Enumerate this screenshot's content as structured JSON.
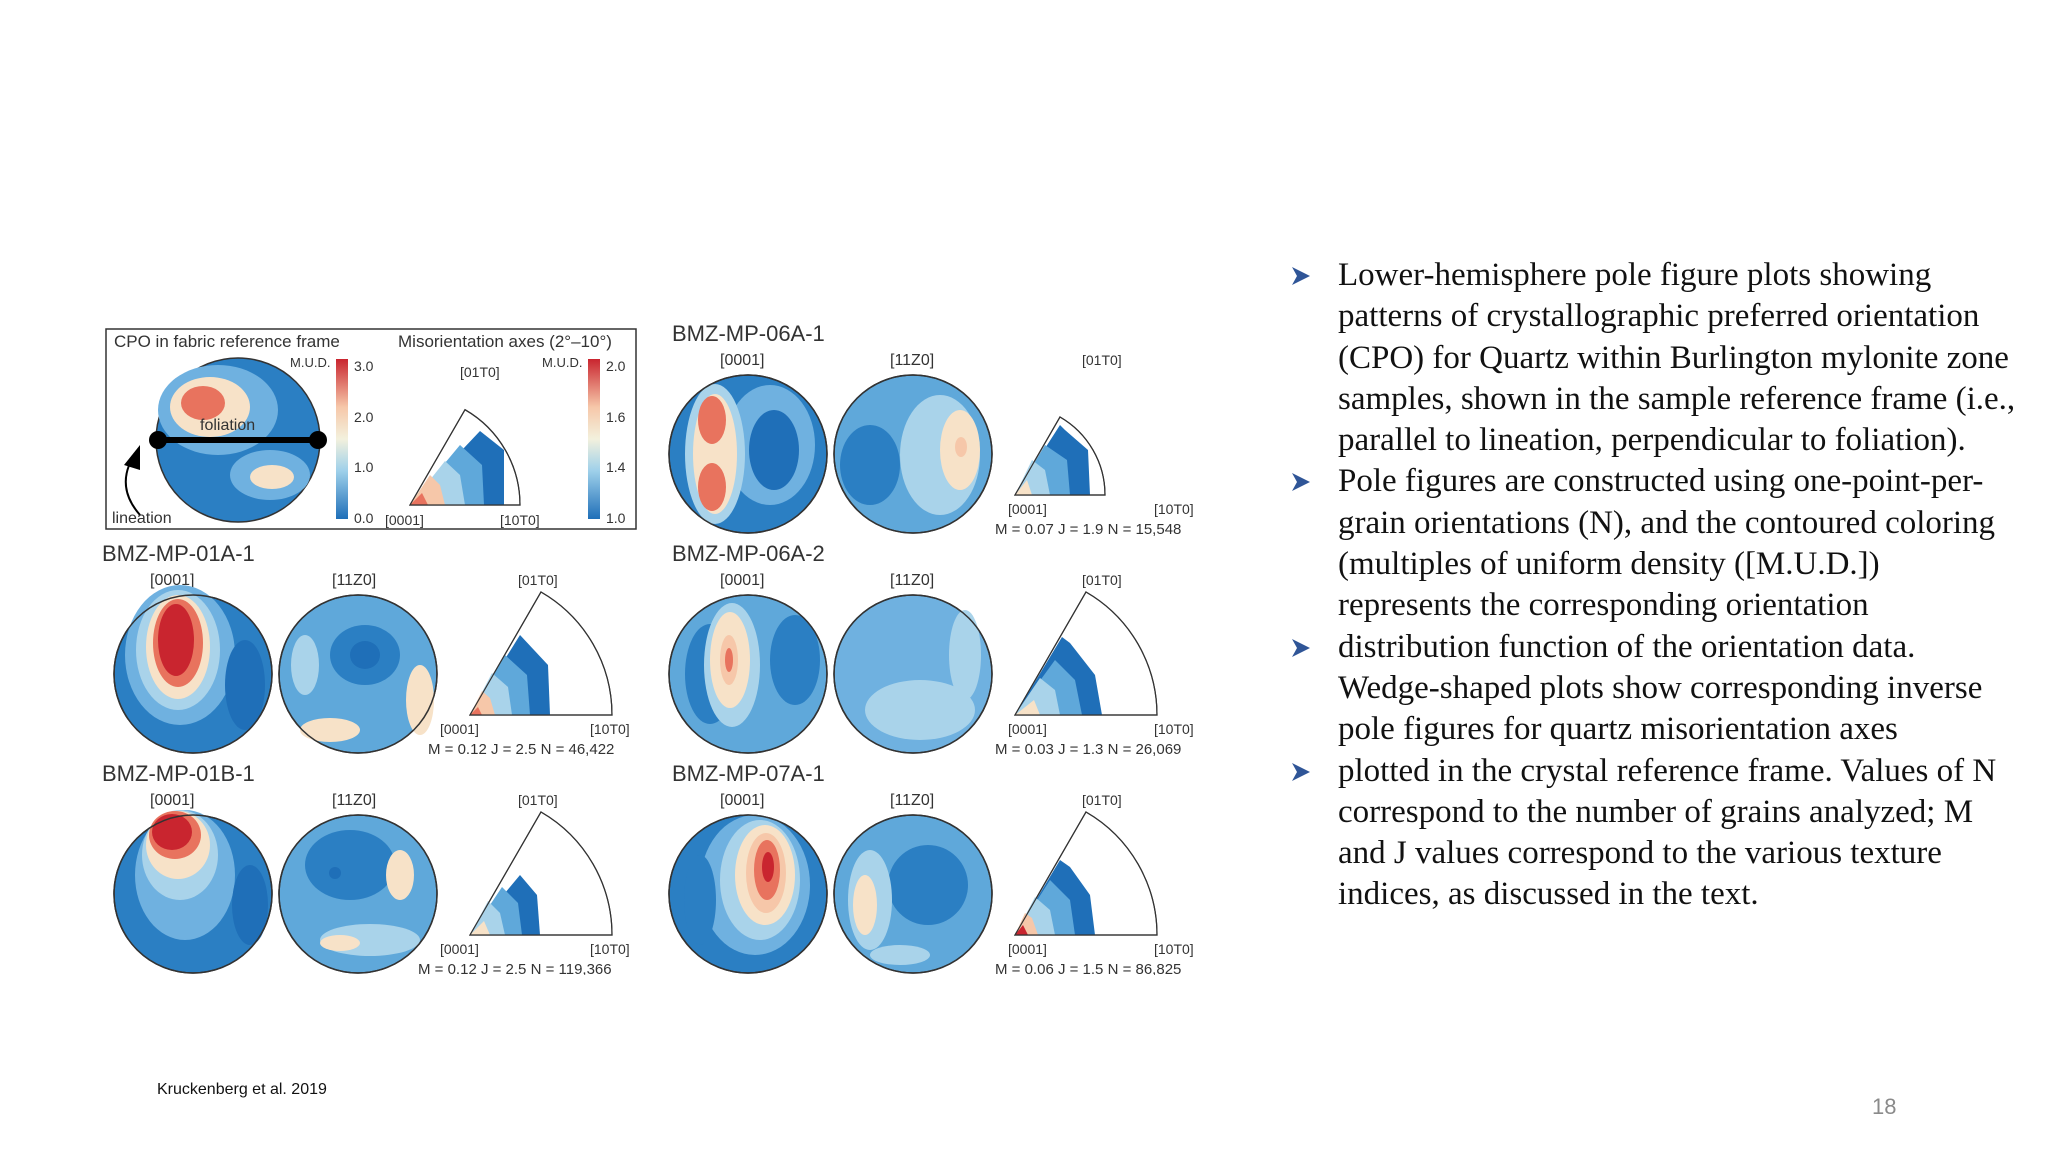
{
  "legend": {
    "left_heading": "CPO in fabric reference frame",
    "right_heading": "Misorientation axes (2°–10°)",
    "mud_label": "M.U.D.",
    "left_ticks": [
      "3.0",
      "2.0",
      "1.0",
      "0.0"
    ],
    "right_ticks": [
      "2.0",
      "1.6",
      "1.4",
      "1.0"
    ],
    "foliation_label": "foliation",
    "lineation_label": "lineation",
    "ipf_top": "[01T0]",
    "ipf_left": "[0001]",
    "ipf_right": "[10T0]"
  },
  "panels": [
    {
      "title": "BMZ-MP-06A-1",
      "label_a": "[0001]",
      "label_b": "[11Z0]",
      "ipf_top": "[01T0]",
      "ipf_left": "[0001]",
      "ipf_right": "[10T0]",
      "stats": "M = 0.07   J = 1.9   N = 15,548"
    },
    {
      "title": "BMZ-MP-01A-1",
      "label_a": "[0001]",
      "label_b": "[11Z0]",
      "ipf_top": "[01T0]",
      "ipf_left": "[0001]",
      "ipf_right": "[10T0]",
      "stats": "M = 0.12   J = 2.5   N = 46,422"
    },
    {
      "title": "BMZ-MP-06A-2",
      "label_a": "[0001]",
      "label_b": "[11Z0]",
      "ipf_top": "[01T0]",
      "ipf_left": "[0001]",
      "ipf_right": "[10T0]",
      "stats": "M = 0.03   J = 1.3   N = 26,069"
    },
    {
      "title": "BMZ-MP-01B-1",
      "label_a": "[0001]",
      "label_b": "[11Z0]",
      "ipf_top": "[01T0]",
      "ipf_left": "[0001]",
      "ipf_right": "[10T0]",
      "stats": "M = 0.12   J = 2.5   N = 119,366"
    },
    {
      "title": "BMZ-MP-07A-1",
      "label_a": "[0001]",
      "label_b": "[11Z0]",
      "ipf_top": "[01T0]",
      "ipf_left": "[0001]",
      "ipf_right": "[10T0]",
      "stats": "M = 0.06   J = 1.5   N = 86,825"
    }
  ],
  "bullets": [
    "Lower-hemisphere pole figure plots showing patterns of crystallographic preferred orientation (CPO) for Quartz within Burlington mylonite zone samples, shown in the sample reference frame (i.e., parallel to lineation, perpendicular to foliation).",
    "Pole figures are constructed using one-point-per-grain orientations (N), and the contoured coloring (multiples of uniform density ([M.U.D.]) represents the corresponding orientation",
    "distribution function of the orientation data. Wedge-shaped plots show corresponding inverse pole figures for quartz misorientation axes",
    "plotted in the crystal reference frame. Values of N correspond to the number of grains analyzed; M and J values correspond to the various texture indices, as discussed in the text."
  ],
  "citation": "Kruckenberg et al. 2019",
  "slide_number": "18",
  "colors": {
    "bullet_arrow": "#2f5597",
    "low_density": "#2b7fc3",
    "mid_density": "#a9d3ea",
    "high_density": "#d8474b",
    "slide_number": "#8a8a8a"
  }
}
